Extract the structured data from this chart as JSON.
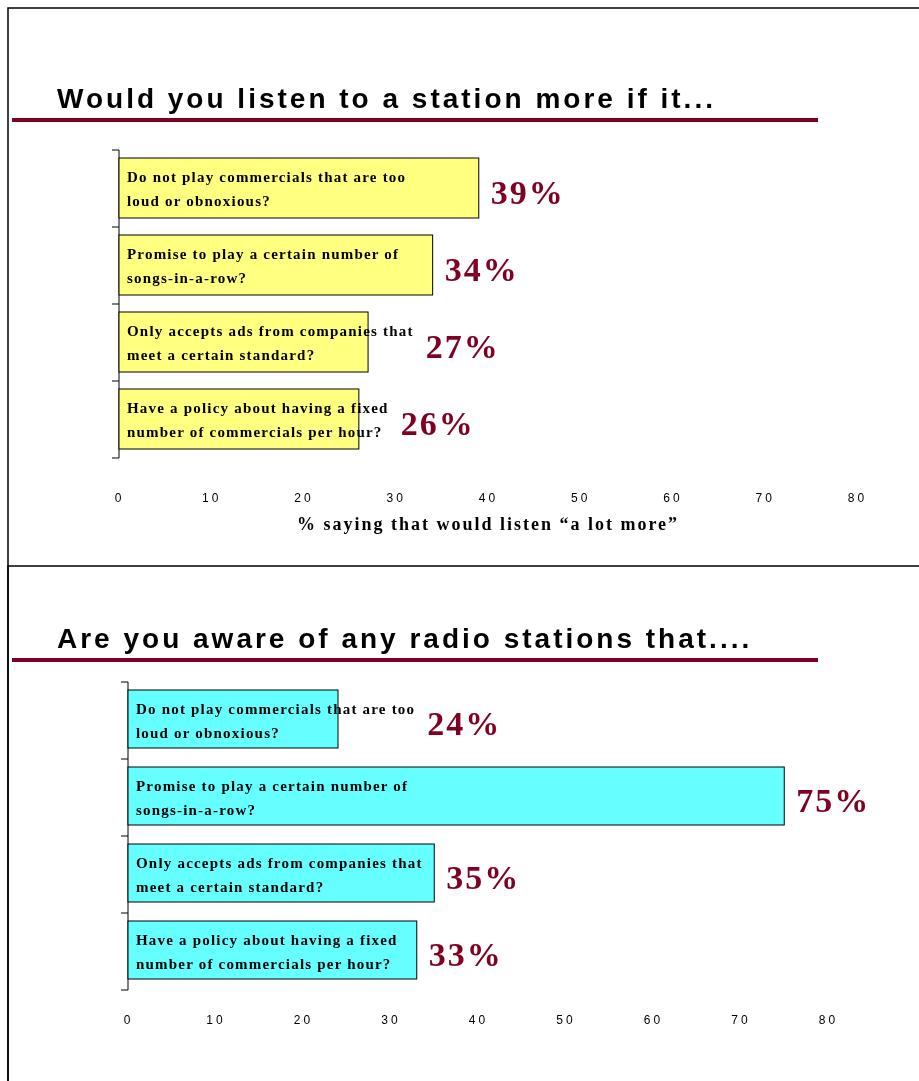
{
  "chart_data": [
    {
      "type": "bar",
      "orientation": "horizontal",
      "title": "Would you listen to a station more if it...",
      "xlabel": "% saying that would listen “a lot more”",
      "categories": [
        "Do not play commercials that are too loud or obnoxious?",
        "Promise to play a certain number of songs-in-a-row?",
        "Only accepts ads from companies that meet a certain standard?",
        "Have a policy about having a fixed number of commercials per hour?"
      ],
      "values": [
        39,
        34,
        27,
        26
      ],
      "value_labels": [
        "39%",
        "34%",
        "27%",
        "26%"
      ],
      "color": "#ffff80",
      "xlim": [
        0,
        80
      ],
      "xticks": [
        0,
        10,
        20,
        30,
        40,
        50,
        60,
        70,
        80
      ]
    },
    {
      "type": "bar",
      "orientation": "horizontal",
      "title": "Are you aware of any radio stations that....",
      "categories": [
        "Do not play commercials that are too loud or obnoxious?",
        "Promise to play a certain number of songs-in-a-row?",
        "Only accepts ads from companies that meet a certain standard?",
        "Have a policy about having a fixed number of commercials per hour?"
      ],
      "values": [
        24,
        75,
        35,
        33
      ],
      "value_labels": [
        "24%",
        "75%",
        "35%",
        "33%"
      ],
      "color": "#66ffff",
      "xlim": [
        0,
        80
      ],
      "xticks": [
        0,
        10,
        20,
        30,
        40,
        50,
        60,
        70,
        80
      ]
    }
  ]
}
